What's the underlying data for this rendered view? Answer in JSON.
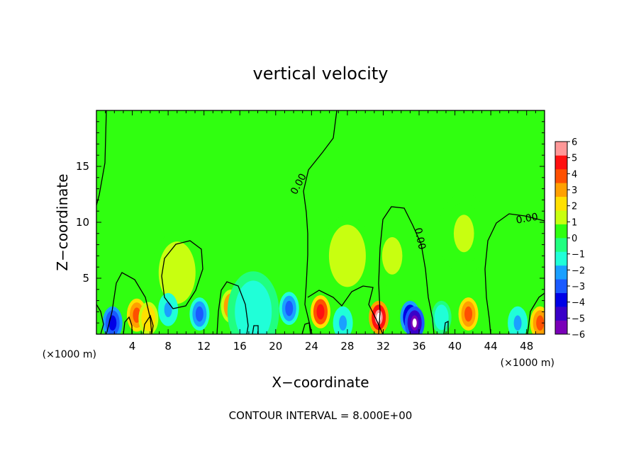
{
  "chart_data": {
    "type": "heatmap",
    "title": "vertical velocity",
    "xlabel": "X−coordinate",
    "ylabel": "Z−coordinate",
    "x_unit_left": "(×1000 m)",
    "x_unit_right": "(×1000 m)",
    "xlim": [
      0,
      50
    ],
    "ylim": [
      0,
      20
    ],
    "x_ticks": [
      4,
      8,
      12,
      16,
      20,
      24,
      28,
      32,
      36,
      40,
      44,
      48
    ],
    "x_tick_labels": [
      "4",
      "8",
      "12",
      "16",
      "20",
      "24",
      "28",
      "32",
      "36",
      "40",
      "44",
      "48"
    ],
    "y_ticks": [
      5,
      10,
      15
    ],
    "y_tick_labels": [
      "5",
      "10",
      "15"
    ],
    "colorbar": {
      "min": -6,
      "max": 6,
      "tick_labels": [
        "6",
        "5",
        "4",
        "3",
        "2",
        "1",
        "0",
        "−1",
        "−2",
        "−3",
        "−4",
        "−5",
        "−6"
      ],
      "colors": [
        "#7a00b8",
        "#3a00c8",
        "#0000e6",
        "#1a5aff",
        "#1aa0ff",
        "#20ffd8",
        "#20ff80",
        "#30ff10",
        "#c8ff10",
        "#ffe000",
        "#ffa000",
        "#ff5000",
        "#ff1010",
        "#ff9898"
      ]
    },
    "contour_labels": [
      "0.00",
      "0.00",
      "0.00"
    ],
    "contour_interval_text": "CONTOUR INTERVAL = 8.000E+00",
    "background_value": 0.3,
    "features": [
      {
        "x": 1.8,
        "z": 1.0,
        "value": -4.5
      },
      {
        "x": 4.5,
        "z": 1.7,
        "value": 4.2
      },
      {
        "x": 5.8,
        "z": 1.4,
        "value": 2.5
      },
      {
        "x": 9.0,
        "z": 5.5,
        "value": 1.3
      },
      {
        "x": 8.0,
        "z": 2.2,
        "value": -2.0
      },
      {
        "x": 11.5,
        "z": 1.8,
        "value": -3.2
      },
      {
        "x": 15.0,
        "z": 2.5,
        "value": 3.6
      },
      {
        "x": 17.5,
        "z": 2.0,
        "value": -1.5
      },
      {
        "x": 21.5,
        "z": 2.3,
        "value": -3.0
      },
      {
        "x": 25.0,
        "z": 2.0,
        "value": 5.3
      },
      {
        "x": 27.5,
        "z": 1.0,
        "value": -2.0
      },
      {
        "x": 28.0,
        "z": 7.0,
        "value": 1.5
      },
      {
        "x": 31.5,
        "z": 1.5,
        "value": 6.0
      },
      {
        "x": 35.0,
        "z": 1.5,
        "value": -5.5
      },
      {
        "x": 35.5,
        "z": 1.0,
        "value": -6.0
      },
      {
        "x": 38.5,
        "z": 1.5,
        "value": -1.8
      },
      {
        "x": 41.5,
        "z": 1.8,
        "value": 4.6
      },
      {
        "x": 47.0,
        "z": 1.0,
        "value": -2.0
      },
      {
        "x": 49.5,
        "z": 1.0,
        "value": 4.0
      },
      {
        "x": 33.0,
        "z": 7.0,
        "value": 1.0
      },
      {
        "x": 41.0,
        "z": 9.0,
        "value": 1.0
      }
    ]
  }
}
